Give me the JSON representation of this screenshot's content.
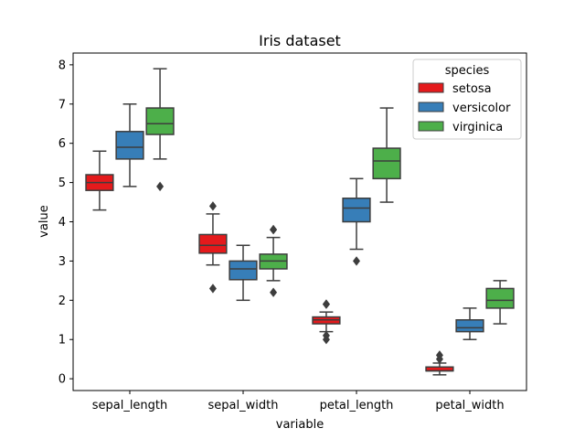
{
  "chart_data": {
    "type": "boxplot",
    "title": "Iris dataset",
    "xlabel": "variable",
    "ylabel": "value",
    "ylim": [
      -0.3,
      8.3
    ],
    "yticks": [
      0,
      1,
      2,
      3,
      4,
      5,
      6,
      7,
      8
    ],
    "categories": [
      "sepal_length",
      "sepal_width",
      "petal_length",
      "petal_width"
    ],
    "legend": {
      "title": "species",
      "placement": "top-right"
    },
    "series": [
      {
        "name": "setosa",
        "color": "#e41a1c",
        "boxes": [
          {
            "whisker_low": 4.3,
            "q1": 4.8,
            "median": 5.0,
            "q3": 5.2,
            "whisker_high": 5.8,
            "outliers": []
          },
          {
            "whisker_low": 2.9,
            "q1": 3.2,
            "median": 3.4,
            "q3": 3.675,
            "whisker_high": 4.2,
            "outliers": [
              2.3,
              4.4
            ]
          },
          {
            "whisker_low": 1.2,
            "q1": 1.4,
            "median": 1.5,
            "q3": 1.575,
            "whisker_high": 1.7,
            "outliers": [
              1.0,
              1.1,
              1.9,
              1.9
            ]
          },
          {
            "whisker_low": 0.1,
            "q1": 0.2,
            "median": 0.2,
            "q3": 0.3,
            "whisker_high": 0.4,
            "outliers": [
              0.5,
              0.6
            ]
          }
        ]
      },
      {
        "name": "versicolor",
        "color": "#377eb8",
        "boxes": [
          {
            "whisker_low": 4.9,
            "q1": 5.6,
            "median": 5.9,
            "q3": 6.3,
            "whisker_high": 7.0,
            "outliers": []
          },
          {
            "whisker_low": 2.0,
            "q1": 2.525,
            "median": 2.8,
            "q3": 3.0,
            "whisker_high": 3.4,
            "outliers": []
          },
          {
            "whisker_low": 3.3,
            "q1": 4.0,
            "median": 4.35,
            "q3": 4.6,
            "whisker_high": 5.1,
            "outliers": [
              3.0
            ]
          },
          {
            "whisker_low": 1.0,
            "q1": 1.2,
            "median": 1.3,
            "q3": 1.5,
            "whisker_high": 1.8,
            "outliers": []
          }
        ]
      },
      {
        "name": "virginica",
        "color": "#4daf4a",
        "boxes": [
          {
            "whisker_low": 5.6,
            "q1": 6.225,
            "median": 6.5,
            "q3": 6.9,
            "whisker_high": 7.9,
            "outliers": [
              4.9
            ]
          },
          {
            "whisker_low": 2.5,
            "q1": 2.8,
            "median": 3.0,
            "q3": 3.175,
            "whisker_high": 3.6,
            "outliers": [
              2.2,
              3.8,
              3.8
            ]
          },
          {
            "whisker_low": 4.5,
            "q1": 5.1,
            "median": 5.55,
            "q3": 5.875,
            "whisker_high": 6.9,
            "outliers": []
          },
          {
            "whisker_low": 1.4,
            "q1": 1.8,
            "median": 2.0,
            "q3": 2.3,
            "whisker_high": 2.5,
            "outliers": []
          }
        ]
      }
    ]
  }
}
